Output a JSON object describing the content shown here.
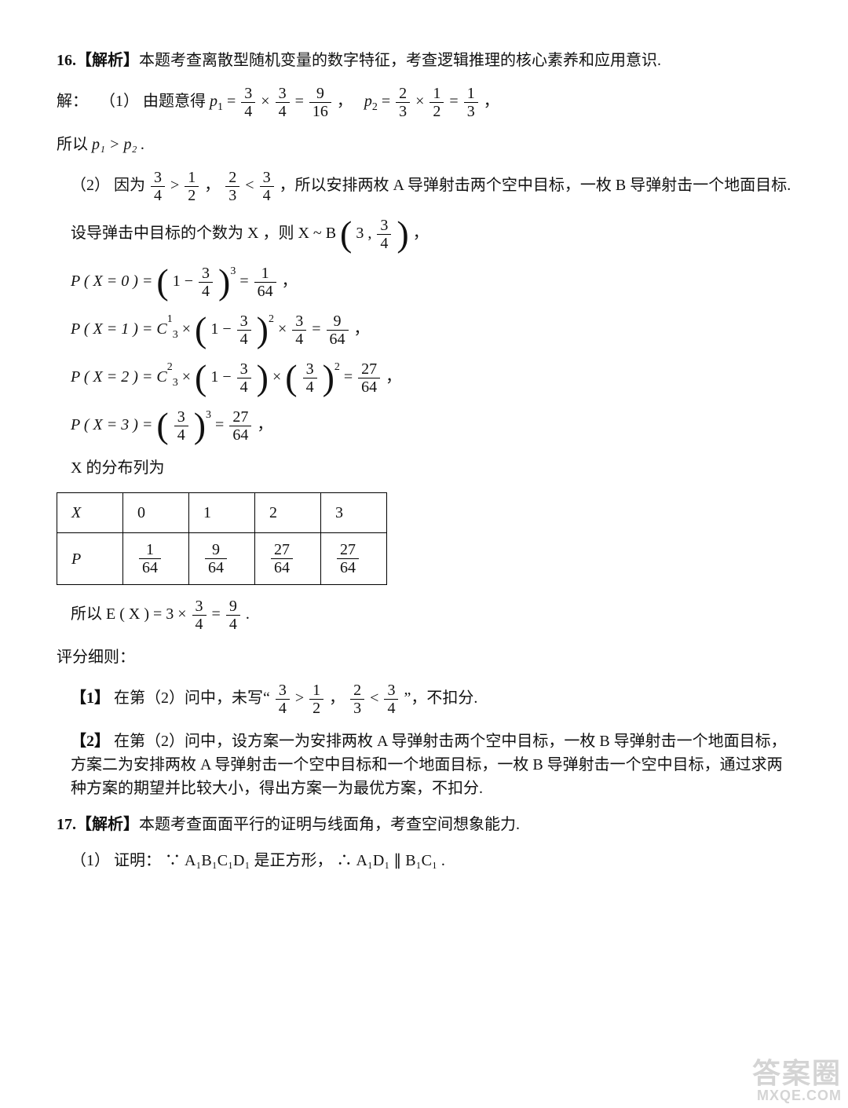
{
  "q16": {
    "analysis_label": "16.【解析】",
    "analysis_text": "本题考查离散型随机变量的数字特征，考查逻辑推理的核心素养和应用意识.",
    "sol_label": "解：",
    "part1_label": "（1）",
    "part1_lead": "由题意得 ",
    "p1_lhs": "p",
    "p1_sub": "1",
    "p1_eq": " = ",
    "p1_a_num": "3",
    "p1_a_den": "4",
    "times": "×",
    "p1_b_num": "3",
    "p1_b_den": "4",
    "eq": " = ",
    "p1_r_num": "9",
    "p1_r_den": "16",
    "comma": "，",
    "p2_lhs": "p",
    "p2_sub": "2",
    "p2_a_num": "2",
    "p2_a_den": "3",
    "p2_b_num": "1",
    "p2_b_den": "2",
    "p2_r_num": "1",
    "p2_r_den": "3",
    "so": "所以 ",
    "p1gtp2": "p₁ > p₂ .",
    "part2_label": "（2）",
    "because": "因为 ",
    "ineq1_a_num": "3",
    "ineq1_a_den": "4",
    "gt": " > ",
    "ineq1_b_num": "1",
    "ineq1_b_den": "2",
    "sep": "，",
    "ineq2_a_num": "2",
    "ineq2_a_den": "3",
    "lt": " < ",
    "ineq2_b_num": "3",
    "ineq2_b_den": "4",
    "ineq_tail": "，所以安排两枚 A 导弹射击两个空中目标，一枚 B 导弹射击一个地面目标.",
    "let": "设导弹击中目标的个数为 X ，则 X ~ B",
    "B_n": "3",
    "B_comma": "，",
    "B_p_num": "3",
    "B_p_den": "4",
    "px0_lhs": "P ( X = 0 ) = ",
    "px0_base_one": "1 − ",
    "px0_in_num": "3",
    "px0_in_den": "4",
    "px0_pow": "3",
    "px0_r_num": "1",
    "px0_r_den": "64",
    "px1_lhs": "P ( X = 1 ) = C",
    "px1_C_n": "3",
    "px1_C_k": "1",
    "px1_x": " × ",
    "px1_a_one": "1 − ",
    "px1_a_num": "3",
    "px1_a_den": "4",
    "px1_a_pow": "2",
    "px1_b_num": "3",
    "px1_b_den": "4",
    "px1_r_num": "9",
    "px1_r_den": "64",
    "px2_lhs": "P ( X = 2 ) = C",
    "px2_C_n": "3",
    "px2_C_k": "2",
    "px2_a_one": "1 − ",
    "px2_a_num": "3",
    "px2_a_den": "4",
    "px2_b_num": "3",
    "px2_b_den": "4",
    "px2_b_pow": "2",
    "px2_r_num": "27",
    "px2_r_den": "64",
    "px3_lhs": "P ( X = 3 ) = ",
    "px3_num": "3",
    "px3_den": "4",
    "px3_pow": "3",
    "px3_r_num": "27",
    "px3_r_den": "64",
    "dist_caption": "X 的分布列为",
    "dist_table": {
      "header": [
        "X",
        "0",
        "1",
        "2",
        "3"
      ],
      "row_label": "P",
      "p": [
        {
          "num": "1",
          "den": "64"
        },
        {
          "num": "9",
          "den": "64"
        },
        {
          "num": "27",
          "den": "64"
        },
        {
          "num": "27",
          "den": "64"
        }
      ]
    },
    "expect_lead": "所以 E ( X ) = 3 × ",
    "expect_a_num": "3",
    "expect_a_den": "4",
    "expect_r_num": "9",
    "expect_r_den": "4",
    "period": " .",
    "scoring_label": "评分细则：",
    "note1_label": "【1】",
    "note1_text_a": "在第（2）问中，未写“",
    "note1_text_b": "”，不扣分.",
    "note2_label": "【2】",
    "note2_text": "在第（2）问中，设方案一为安排两枚 A 导弹射击两个空中目标，一枚 B 导弹射击一个地面目标，方案二为安排两枚 A 导弹射击一个空中目标和一个地面目标，一枚 B 导弹射击一个空中目标，通过求两种方案的期望并比较大小，得出方案一为最优方案，不扣分."
  },
  "q17": {
    "analysis_label": "17.【解析】",
    "analysis_text": "本题考查面面平行的证明与线面角，考查空间想象能力.",
    "part1_label": "（1）",
    "proof_label": "证明：",
    "because": "∵ A₁B₁C₁D₁ 是正方形，",
    "therefore": "∴ A₁D₁ ∥ B₁C₁ ."
  },
  "watermark": {
    "top": "答案圈",
    "bottom": "MXQE.COM"
  },
  "style": {
    "bg": "#ffffff",
    "text": "#111111",
    "border": "#000000",
    "body_width": 1080,
    "body_height": 1411,
    "font_size_body": 20,
    "font_size_big_paren": 46,
    "table_cell_minw": 84,
    "table_cell_h": 48
  }
}
